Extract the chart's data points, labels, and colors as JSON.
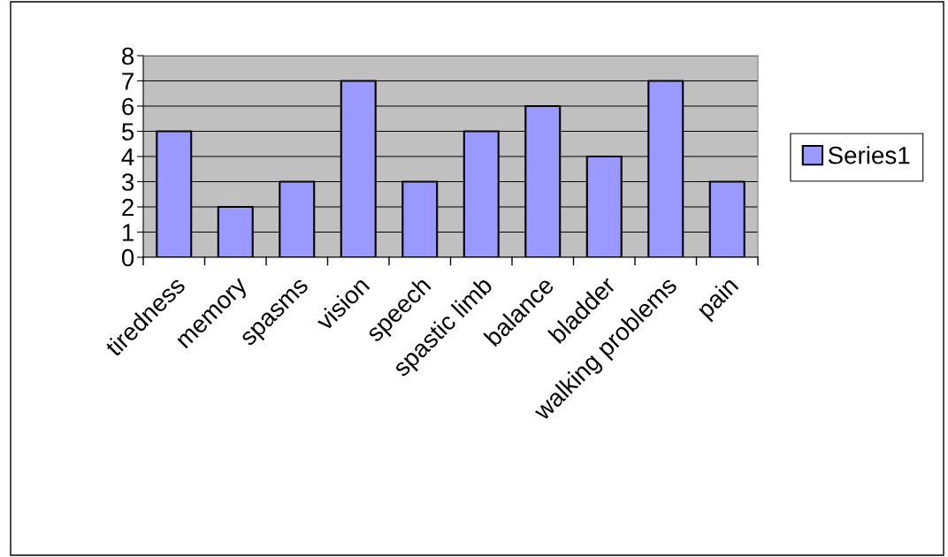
{
  "chart_data": {
    "type": "bar",
    "categories": [
      "tiredness",
      "memory",
      "spasms",
      "vision",
      "speech",
      "spastic limb",
      "balance",
      "bladder",
      "walking problems",
      "pain"
    ],
    "series": [
      {
        "name": "Series1",
        "color": "#9999ff",
        "values": [
          5,
          2,
          3,
          7,
          3,
          5,
          6,
          4,
          7,
          3
        ]
      }
    ],
    "ylim": [
      0,
      8
    ],
    "yticks": [
      0,
      1,
      2,
      3,
      4,
      5,
      6,
      7,
      8
    ],
    "grid": "y",
    "legend": "right"
  }
}
